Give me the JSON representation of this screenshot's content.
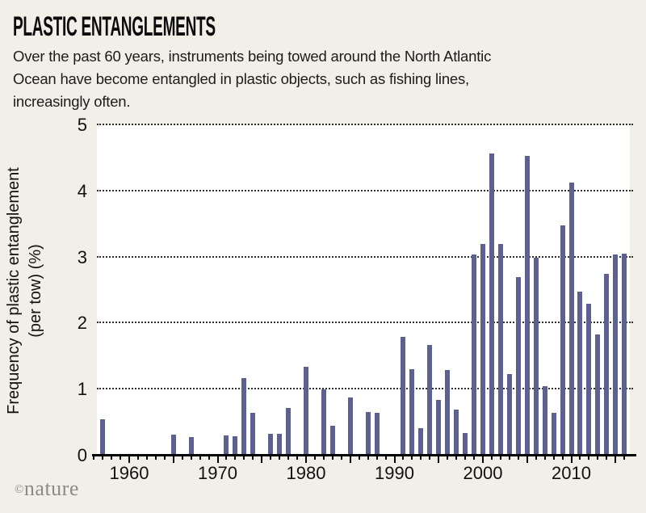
{
  "header": {
    "title": "PLASTIC ENTANGLEMENTS",
    "subtitle_lines": [
      "Over the past 60 years, instruments being towed around the North Atlantic",
      "Ocean have become entangled in plastic objects, such as fishing lines,",
      "increasingly often."
    ]
  },
  "credit": {
    "symbol": "©",
    "name": "nature"
  },
  "colors": {
    "page_background": "#f2efe8",
    "plot_background": "#ffffff",
    "bar": "#5c6190",
    "axis": "#000000",
    "gridline": "#2e2e2e",
    "credit_text": "#8b8b85"
  },
  "chart_data": {
    "type": "bar",
    "title": "PLASTIC ENTANGLEMENTS",
    "ylabel_line1": "Frequency of plastic entanglement",
    "ylabel_line2": "(per tow) (%)",
    "xlabel": "",
    "ylim": [
      0,
      5
    ],
    "yticks": [
      0,
      1,
      2,
      3,
      4,
      5
    ],
    "xticks": [
      1960,
      1970,
      1980,
      1990,
      2000,
      2010
    ],
    "x_axis_year_range": [
      1956,
      2016
    ],
    "grid": "horizontal dotted",
    "legend": "none",
    "years": [
      1957,
      1965,
      1967,
      1971,
      1972,
      1973,
      1974,
      1976,
      1977,
      1978,
      1980,
      1982,
      1983,
      1985,
      1987,
      1988,
      1991,
      1992,
      1993,
      1994,
      1995,
      1996,
      1997,
      1998,
      1999,
      2000,
      2001,
      2002,
      2003,
      2004,
      2005,
      2006,
      2007,
      2008,
      2009,
      2010,
      2011,
      2012,
      2013,
      2014,
      2015,
      2016
    ],
    "values": [
      0.55,
      0.32,
      0.28,
      0.3,
      0.29,
      1.17,
      0.65,
      0.33,
      0.33,
      0.72,
      1.35,
      1.0,
      0.45,
      0.88,
      0.66,
      0.65,
      1.8,
      1.31,
      0.42,
      1.68,
      0.84,
      1.3,
      0.7,
      0.34,
      3.04,
      3.2,
      4.57,
      3.2,
      1.23,
      2.7,
      4.53,
      3.0,
      1.05,
      0.65,
      3.49,
      4.13,
      2.48,
      2.3,
      1.83,
      2.75,
      3.05,
      3.06
    ]
  }
}
